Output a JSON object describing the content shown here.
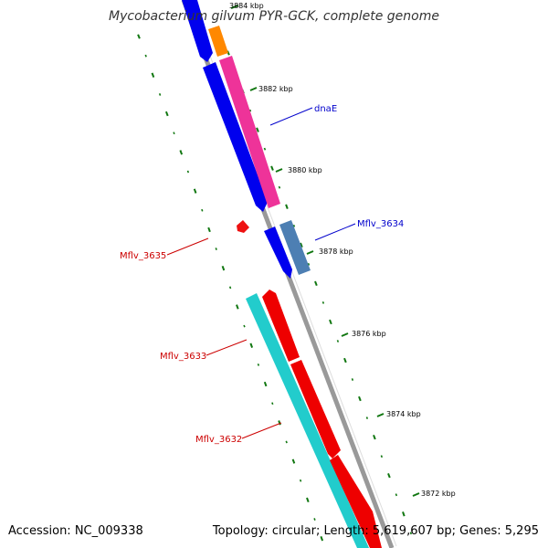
{
  "title": "Mycobacterium gilvum PYR-GCK, complete genome",
  "footer": {
    "accession": "Accession: NC_009338",
    "summary": "Topology: circular; Length: 5,619,607 bp; Genes: 5,295"
  },
  "ticks": [
    "3884 kbp",
    "3882 kbp",
    "3880 kbp",
    "3878 kbp",
    "3876 kbp",
    "3874 kbp",
    "3872 kbp"
  ],
  "genes": [
    {
      "name": "dnaE",
      "color": "#0000cc"
    },
    {
      "name": "Mflv_3634",
      "color": "#0000cc"
    },
    {
      "name": "Mflv_3635",
      "color": "#cc0000"
    },
    {
      "name": "Mflv_3633",
      "color": "#cc0000"
    },
    {
      "name": "Mflv_3632",
      "color": "#cc0000"
    }
  ],
  "colors": {
    "backbone": "#888888",
    "blue": "#0000ee",
    "magenta": "#ee3399",
    "orange": "#ff8800",
    "steelblue": "#4d7fb3",
    "red": "#ee0000",
    "cyan": "#22cccc",
    "dots": "#117711"
  }
}
